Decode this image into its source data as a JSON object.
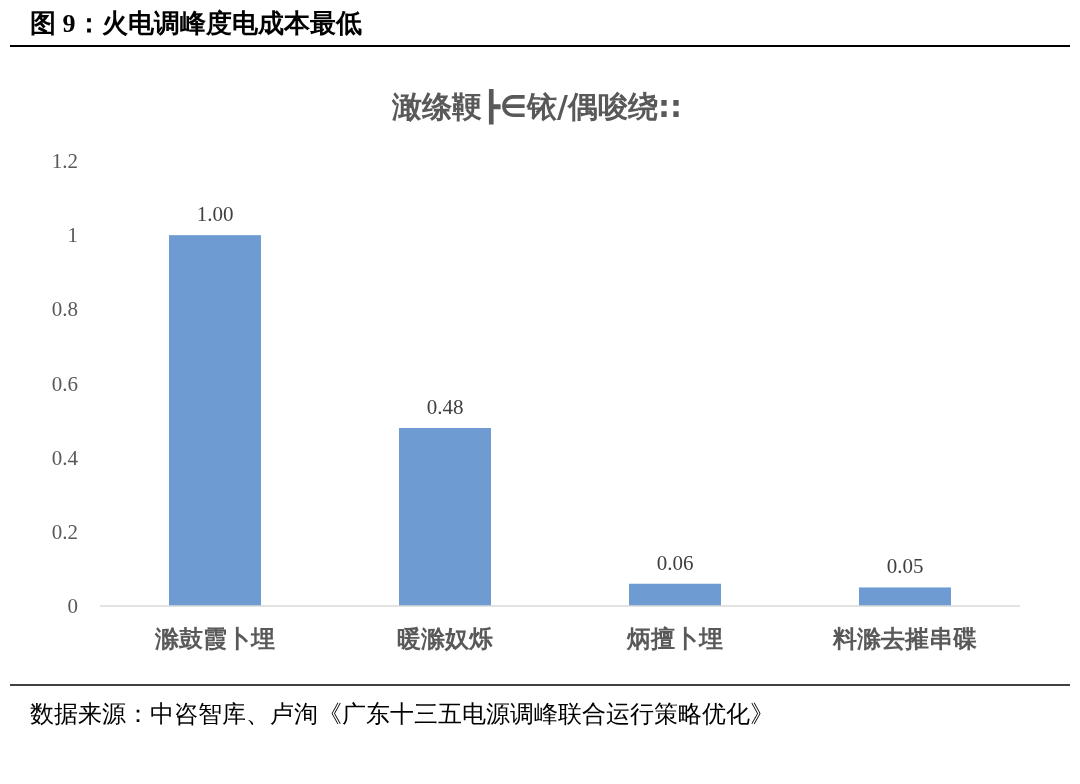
{
  "chart_data": {
    "type": "bar",
    "title": "图 9：火电调峰度电成本最低",
    "subtitle": "澉绦鞕┣∈铱/偶唆绕::",
    "categories": [
      "滁鼓霞卜埋",
      "暖滁奴烁",
      "炳擅卜埋",
      "料滁去摧串碟"
    ],
    "values": [
      1,
      0.48,
      0.06,
      0.05
    ],
    "value_labels": [
      "1.00",
      "0.48",
      "0.06",
      "0.05"
    ],
    "color": "#6d9bd2",
    "ylim": [
      0,
      1.2
    ],
    "yticks": [
      0,
      0.2,
      0.4,
      0.6,
      0.8,
      1,
      1.2
    ],
    "annotations": [
      "数据来源：中咨智库、卢洵《广东十三五电源调峰联合运行策略优化》"
    ]
  }
}
